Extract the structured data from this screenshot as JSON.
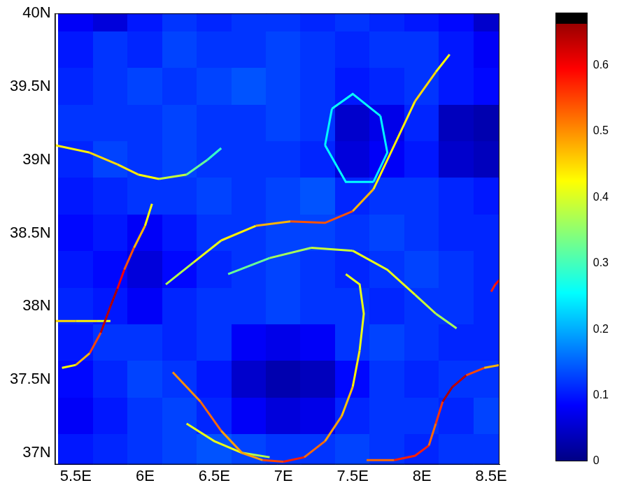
{
  "chart_data": {
    "type": "heatmap",
    "xlim": [
      5.35,
      8.56
    ],
    "ylim": [
      36.92,
      40
    ],
    "xticks": [
      {
        "value": 5.5,
        "label": "5.5E"
      },
      {
        "value": 6,
        "label": "6E"
      },
      {
        "value": 6.5,
        "label": "6.5E"
      },
      {
        "value": 7,
        "label": "7E"
      },
      {
        "value": 7.5,
        "label": "7.5E"
      },
      {
        "value": 8,
        "label": "8E"
      },
      {
        "value": 8.5,
        "label": "8.5E"
      }
    ],
    "yticks": [
      {
        "value": 37,
        "label": "37N"
      },
      {
        "value": 37.5,
        "label": "37.5N"
      },
      {
        "value": 38,
        "label": "38N"
      },
      {
        "value": 38.5,
        "label": "38.5N"
      },
      {
        "value": 39,
        "label": "39N"
      },
      {
        "value": 39.5,
        "label": "39.5N"
      },
      {
        "value": 40,
        "label": "40N"
      }
    ],
    "grid": false,
    "cells": {
      "x": [
        5.5,
        5.75,
        6.0,
        6.25,
        6.5,
        6.75,
        7.0,
        7.25,
        7.5,
        7.75,
        8.0,
        8.25,
        8.5
      ],
      "y": [
        40.0,
        39.75,
        39.5,
        39.25,
        39.0,
        38.75,
        38.5,
        38.25,
        38.0,
        37.75,
        37.5,
        37.25,
        37.0
      ],
      "values": [
        [
          0.08,
          0.06,
          0.1,
          0.12,
          0.11,
          0.12,
          0.12,
          0.11,
          0.12,
          0.11,
          0.1,
          0.09,
          0.05
        ],
        [
          0.1,
          0.12,
          0.11,
          0.13,
          0.12,
          0.12,
          0.13,
          0.12,
          0.11,
          0.12,
          0.12,
          0.1,
          0.08
        ],
        [
          0.11,
          0.12,
          0.13,
          0.12,
          0.13,
          0.14,
          0.13,
          0.12,
          0.1,
          0.11,
          0.12,
          0.1,
          0.09
        ],
        [
          0.12,
          0.12,
          0.12,
          0.13,
          0.12,
          0.12,
          0.13,
          0.12,
          0.05,
          0.07,
          0.11,
          0.04,
          0.03
        ],
        [
          0.11,
          0.13,
          0.12,
          0.13,
          0.12,
          0.12,
          0.12,
          0.11,
          0.06,
          0.08,
          0.1,
          0.05,
          0.04
        ],
        [
          0.1,
          0.11,
          0.12,
          0.12,
          0.13,
          0.12,
          0.13,
          0.14,
          0.11,
          0.12,
          0.12,
          0.11,
          0.1
        ],
        [
          0.09,
          0.1,
          0.08,
          0.1,
          0.12,
          0.12,
          0.13,
          0.13,
          0.12,
          0.13,
          0.12,
          0.11,
          0.11
        ],
        [
          0.1,
          0.09,
          0.06,
          0.09,
          0.11,
          0.12,
          0.13,
          0.12,
          0.11,
          0.12,
          0.13,
          0.12,
          0.11
        ],
        [
          0.11,
          0.1,
          0.08,
          0.11,
          0.12,
          0.12,
          0.13,
          0.12,
          0.12,
          0.11,
          0.12,
          0.12,
          0.11
        ],
        [
          0.1,
          0.12,
          0.12,
          0.11,
          0.12,
          0.08,
          0.07,
          0.08,
          0.12,
          0.13,
          0.12,
          0.11,
          0.11
        ],
        [
          0.09,
          0.11,
          0.13,
          0.12,
          0.1,
          0.05,
          0.03,
          0.04,
          0.09,
          0.12,
          0.11,
          0.12,
          0.12
        ],
        [
          0.08,
          0.1,
          0.12,
          0.13,
          0.11,
          0.08,
          0.06,
          0.07,
          0.11,
          0.12,
          0.12,
          0.11,
          0.13
        ],
        [
          0.1,
          0.11,
          0.12,
          0.13,
          0.14,
          0.13,
          0.12,
          0.12,
          0.13,
          0.12,
          0.11,
          0.12,
          0.12
        ]
      ]
    },
    "ridges": [
      {
        "x": [
          5.35,
          5.6,
          5.8,
          5.95,
          6.1,
          6.3,
          6.45,
          6.55
        ],
        "y": [
          39.1,
          39.05,
          38.97,
          38.9,
          38.87,
          38.9,
          39.0,
          39.08
        ],
        "values": [
          0.42,
          0.45,
          0.45,
          0.43,
          0.42,
          0.35,
          0.3,
          0.28
        ]
      },
      {
        "x": [
          6.05,
          6.0,
          5.92,
          5.85,
          5.8,
          5.75,
          5.68,
          5.6,
          5.5,
          5.4
        ],
        "y": [
          38.7,
          38.55,
          38.4,
          38.25,
          38.12,
          38.0,
          37.82,
          37.68,
          37.6,
          37.58
        ],
        "values": [
          0.4,
          0.45,
          0.5,
          0.58,
          0.62,
          0.68,
          0.6,
          0.5,
          0.45,
          0.4
        ]
      },
      {
        "x": [
          5.35,
          5.5,
          5.65,
          5.75
        ],
        "y": [
          37.9,
          37.9,
          37.9,
          37.9
        ],
        "values": [
          0.45,
          0.45,
          0.42,
          0.4
        ]
      },
      {
        "x": [
          6.15,
          6.35,
          6.55,
          6.8,
          7.05,
          7.3,
          7.5,
          7.65,
          7.8,
          7.95,
          8.1,
          8.2
        ],
        "y": [
          38.15,
          38.3,
          38.45,
          38.55,
          38.58,
          38.57,
          38.65,
          38.8,
          39.1,
          39.4,
          39.6,
          39.72
        ],
        "values": [
          0.35,
          0.4,
          0.42,
          0.45,
          0.5,
          0.58,
          0.5,
          0.45,
          0.42,
          0.45,
          0.45,
          0.4
        ]
      },
      {
        "x": [
          6.2,
          6.4,
          6.55,
          6.7,
          6.85,
          7.0,
          7.15,
          7.3,
          7.42,
          7.5,
          7.55,
          7.58,
          7.55,
          7.45
        ],
        "y": [
          37.55,
          37.35,
          37.15,
          37.0,
          36.95,
          36.94,
          36.97,
          37.08,
          37.25,
          37.45,
          37.7,
          37.95,
          38.15,
          38.22
        ],
        "values": [
          0.45,
          0.55,
          0.5,
          0.48,
          0.5,
          0.6,
          0.55,
          0.5,
          0.48,
          0.45,
          0.42,
          0.4,
          0.42,
          0.4
        ]
      },
      {
        "x": [
          6.6,
          6.9,
          7.2,
          7.5,
          7.75,
          7.95,
          8.1,
          8.25
        ],
        "y": [
          38.22,
          38.33,
          38.4,
          38.38,
          38.25,
          38.08,
          37.95,
          37.85
        ],
        "values": [
          0.3,
          0.35,
          0.38,
          0.4,
          0.42,
          0.4,
          0.38,
          0.35
        ]
      },
      {
        "x": [
          7.6,
          7.8,
          7.95,
          8.05,
          8.1,
          8.15,
          8.22,
          8.32,
          8.45,
          8.56
        ],
        "y": [
          36.95,
          36.95,
          36.98,
          37.05,
          37.2,
          37.35,
          37.45,
          37.53,
          37.58,
          37.6
        ],
        "values": [
          0.5,
          0.55,
          0.6,
          0.55,
          0.5,
          0.62,
          0.68,
          0.6,
          0.5,
          0.45
        ]
      },
      {
        "x": [
          6.3,
          6.5,
          6.7,
          6.9
        ],
        "y": [
          37.2,
          37.08,
          37.0,
          36.97
        ],
        "values": [
          0.4,
          0.42,
          0.4,
          0.35
        ]
      },
      {
        "x": [
          8.5,
          8.53,
          8.56
        ],
        "y": [
          38.1,
          38.15,
          38.18
        ],
        "values": [
          0.55,
          0.6,
          0.58
        ]
      },
      {
        "x": [
          7.3,
          7.35,
          7.5,
          7.7,
          7.75,
          7.65,
          7.45,
          7.3
        ],
        "y": [
          39.1,
          39.35,
          39.45,
          39.3,
          39.05,
          38.85,
          38.85,
          39.1
        ],
        "values": [
          0.25,
          0.25,
          0.27,
          0.25,
          0.24,
          0.25,
          0.26,
          0.25
        ]
      }
    ],
    "colorbar": {
      "range": [
        0,
        0.68
      ],
      "ticks": [
        0,
        0.1,
        0.2,
        0.3,
        0.4,
        0.5,
        0.6
      ]
    }
  }
}
